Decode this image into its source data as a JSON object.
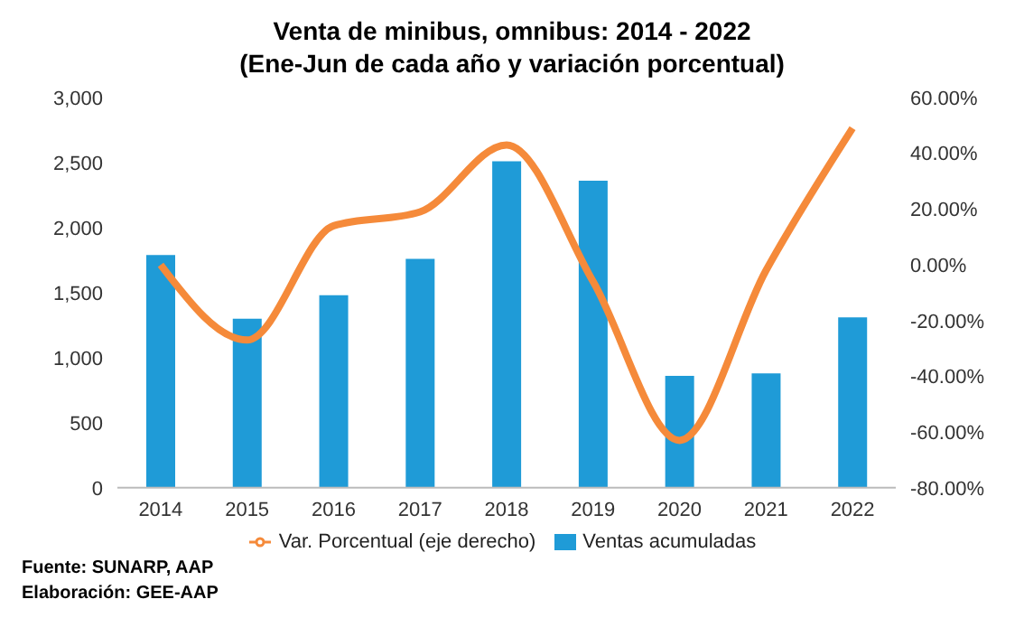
{
  "chart_data": {
    "type": "bar",
    "title": "Venta de minibus, omnibus: 2014 - 2022",
    "subtitle": "(Ene-Jun de cada año y variación porcentual)",
    "categories": [
      "2014",
      "2015",
      "2016",
      "2017",
      "2018",
      "2019",
      "2020",
      "2021",
      "2022"
    ],
    "series": [
      {
        "name": "Ventas acumuladas",
        "color": "#1f9bd7",
        "values": [
          1790,
          1300,
          1480,
          1760,
          2510,
          2360,
          860,
          880,
          1310
        ]
      },
      {
        "name": "Var. Porcentual (eje derecho)",
        "type": "line",
        "axis": "y2",
        "color": "#f58a3a",
        "values": [
          0,
          -27,
          14,
          19,
          43,
          -6,
          -63,
          -2,
          49
        ]
      }
    ],
    "ylim": [
      0,
      3000
    ],
    "yticks": [
      {
        "value": 0,
        "label": "0"
      },
      {
        "value": 500,
        "label": "500"
      },
      {
        "value": 1000,
        "label": "1,000"
      },
      {
        "value": 1500,
        "label": "1,500"
      },
      {
        "value": 2000,
        "label": "2,000"
      },
      {
        "value": 2500,
        "label": "2,500"
      },
      {
        "value": 3000,
        "label": "3,000"
      }
    ],
    "y2lim": [
      -80,
      60
    ],
    "y2ticks": [
      {
        "value": -80,
        "label": "-80.00%"
      },
      {
        "value": -60,
        "label": "-60.00%"
      },
      {
        "value": -40,
        "label": "-40.00%"
      },
      {
        "value": -20,
        "label": "-20.00%"
      },
      {
        "value": 0,
        "label": "0.00%"
      },
      {
        "value": 20,
        "label": "20.00%"
      },
      {
        "value": 40,
        "label": "40.00%"
      },
      {
        "value": 60,
        "label": "60.00%"
      }
    ],
    "grid": false,
    "legend": "bottom",
    "marker": "none",
    "annotations": [
      "Fuente: SUNARP, AAP",
      "Elaboración: GEE-AAP"
    ]
  }
}
